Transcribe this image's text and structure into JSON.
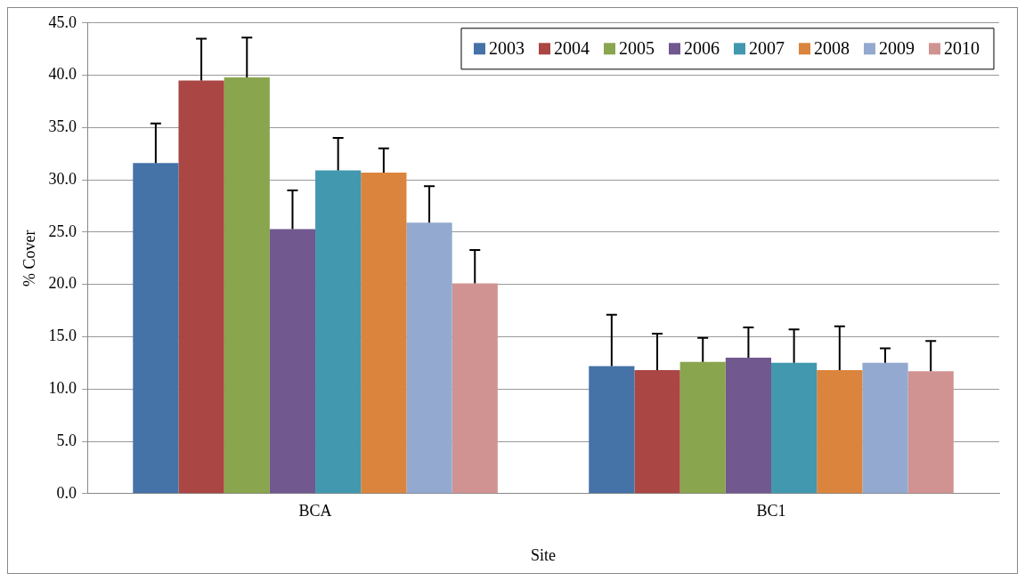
{
  "chart_data": {
    "type": "bar",
    "xlabel": "Site",
    "ylabel": "% Cover",
    "categories": [
      "BCA",
      "BC1"
    ],
    "series": [
      {
        "name": "2003",
        "color": "#4572a7",
        "values": [
          31.6,
          12.2
        ],
        "errors": [
          [
            31.6,
            35.4
          ],
          [
            12.2,
            17.1
          ]
        ]
      },
      {
        "name": "2004",
        "color": "#aa4643",
        "values": [
          39.5,
          11.8
        ],
        "errors": [
          [
            39.5,
            43.5
          ],
          [
            11.8,
            15.3
          ]
        ]
      },
      {
        "name": "2005",
        "color": "#89a54e",
        "values": [
          39.8,
          12.6
        ],
        "errors": [
          [
            39.8,
            43.6
          ],
          [
            12.6,
            14.9
          ]
        ]
      },
      {
        "name": "2006",
        "color": "#71588f",
        "values": [
          25.3,
          13.0
        ],
        "errors": [
          [
            25.3,
            29.0
          ],
          [
            13.0,
            15.9
          ]
        ]
      },
      {
        "name": "2007",
        "color": "#4198af",
        "values": [
          30.9,
          12.5
        ],
        "errors": [
          [
            30.9,
            34.0
          ],
          [
            12.5,
            15.7
          ]
        ]
      },
      {
        "name": "2008",
        "color": "#db843d",
        "values": [
          30.7,
          11.8
        ],
        "errors": [
          [
            30.7,
            33.0
          ],
          [
            11.8,
            16.0
          ]
        ]
      },
      {
        "name": "2009",
        "color": "#93a9cf",
        "values": [
          25.9,
          12.5
        ],
        "errors": [
          [
            25.9,
            29.4
          ],
          [
            12.5,
            13.9
          ]
        ]
      },
      {
        "name": "2010",
        "color": "#d19392",
        "values": [
          20.1,
          11.7
        ],
        "errors": [
          [
            20.1,
            23.3
          ],
          [
            11.7,
            14.6
          ]
        ]
      }
    ],
    "ylim": [
      0,
      45
    ],
    "yticks": [
      {
        "value": 0,
        "label": "0.0"
      },
      {
        "value": 5,
        "label": "5.0"
      },
      {
        "value": 10,
        "label": "10.0"
      },
      {
        "value": 15,
        "label": "15.0"
      },
      {
        "value": 20,
        "label": "20.0"
      },
      {
        "value": 25,
        "label": "25.0"
      },
      {
        "value": 30,
        "label": "30.0"
      },
      {
        "value": 35,
        "label": "35.0"
      },
      {
        "value": 40,
        "label": "40.0"
      },
      {
        "value": 45,
        "label": "45.0"
      }
    ],
    "grid": "y",
    "legend": "top right"
  }
}
